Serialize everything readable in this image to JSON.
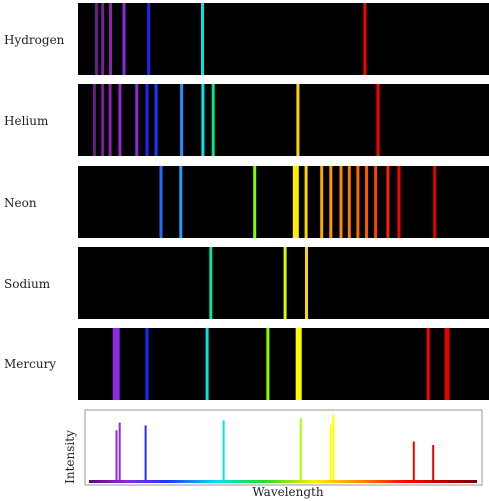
{
  "figure": {
    "panel_background": "#000000",
    "plot_background": "#ffffff",
    "plot_border": "#999999",
    "text_color": "#222222"
  },
  "chart_data": [
    {
      "type": "spectral-lines",
      "name": "hydrogen",
      "label": "Hydrogen",
      "lines": [
        {
          "pos": 0.045,
          "color": "#6a1b8a"
        },
        {
          "pos": 0.06,
          "color": "#7a1f9a"
        },
        {
          "pos": 0.079,
          "color": "#8a22b4"
        },
        {
          "pos": 0.112,
          "color": "#8a2be2"
        },
        {
          "pos": 0.172,
          "color": "#2222ff"
        },
        {
          "pos": 0.303,
          "color": "#00e5e5"
        },
        {
          "pos": 0.698,
          "color": "#ff0000"
        }
      ]
    },
    {
      "type": "spectral-lines",
      "name": "helium",
      "label": "Helium",
      "lines": [
        {
          "pos": 0.04,
          "color": "#6a1b8a"
        },
        {
          "pos": 0.06,
          "color": "#7a1f9a"
        },
        {
          "pos": 0.078,
          "color": "#8a22b4"
        },
        {
          "pos": 0.102,
          "color": "#9a28d0"
        },
        {
          "pos": 0.143,
          "color": "#8a2be2"
        },
        {
          "pos": 0.168,
          "color": "#2222ff"
        },
        {
          "pos": 0.19,
          "color": "#1a3cff"
        },
        {
          "pos": 0.252,
          "color": "#1e90ff"
        },
        {
          "pos": 0.304,
          "color": "#00e5e5"
        },
        {
          "pos": 0.329,
          "color": "#00e58a"
        },
        {
          "pos": 0.535,
          "color": "#ffd700"
        },
        {
          "pos": 0.73,
          "color": "#ff0000"
        }
      ]
    },
    {
      "type": "spectral-lines",
      "name": "neon",
      "label": "Neon",
      "lines": [
        {
          "pos": 0.202,
          "color": "#1e6cff"
        },
        {
          "pos": 0.25,
          "color": "#1ea0ff"
        },
        {
          "pos": 0.43,
          "color": "#7fff00"
        },
        {
          "pos": 0.53,
          "color": "#ffee00",
          "width": 6
        },
        {
          "pos": 0.555,
          "color": "#ffd700"
        },
        {
          "pos": 0.593,
          "color": "#ffa500"
        },
        {
          "pos": 0.615,
          "color": "#ff9800"
        },
        {
          "pos": 0.64,
          "color": "#ff8c00"
        },
        {
          "pos": 0.66,
          "color": "#ff7a00"
        },
        {
          "pos": 0.681,
          "color": "#ff6a00"
        },
        {
          "pos": 0.702,
          "color": "#ff5500"
        },
        {
          "pos": 0.724,
          "color": "#ff4000"
        },
        {
          "pos": 0.754,
          "color": "#ff2000"
        },
        {
          "pos": 0.781,
          "color": "#ff0000"
        },
        {
          "pos": 0.868,
          "color": "#e00000"
        }
      ]
    },
    {
      "type": "spectral-lines",
      "name": "sodium",
      "label": "Sodium",
      "lines": [
        {
          "pos": 0.323,
          "color": "#00e5a0"
        },
        {
          "pos": 0.504,
          "color": "#d4ff00"
        },
        {
          "pos": 0.556,
          "color": "#ffd700"
        }
      ]
    },
    {
      "type": "spectral-lines",
      "name": "mercury",
      "label": "Mercury",
      "lines": [
        {
          "pos": 0.093,
          "color": "#8a2be2",
          "width": 7
        },
        {
          "pos": 0.168,
          "color": "#2222ff"
        },
        {
          "pos": 0.314,
          "color": "#00e5e5"
        },
        {
          "pos": 0.462,
          "color": "#7fff00"
        },
        {
          "pos": 0.537,
          "color": "#ffff00",
          "width": 6
        },
        {
          "pos": 0.852,
          "color": "#ff0000"
        },
        {
          "pos": 0.898,
          "color": "#e00000",
          "width": 5
        }
      ]
    },
    {
      "type": "line",
      "name": "intensity-spectrum",
      "xlabel": "Wavelength",
      "ylabel": "Intensity",
      "xlim": [
        0,
        1
      ],
      "ylim": [
        0,
        1
      ],
      "peaks": [
        {
          "x": 0.071,
          "y": 0.71,
          "color": "#8a2be2"
        },
        {
          "x": 0.079,
          "y": 0.82,
          "color": "#8a2be2"
        },
        {
          "x": 0.146,
          "y": 0.78,
          "color": "#2a2aff"
        },
        {
          "x": 0.347,
          "y": 0.85,
          "color": "#00e5e5"
        },
        {
          "x": 0.546,
          "y": 0.88,
          "color": "#a8ff00"
        },
        {
          "x": 0.623,
          "y": 0.79,
          "color": "#ffff00"
        },
        {
          "x": 0.63,
          "y": 0.93,
          "color": "#ffff00"
        },
        {
          "x": 0.837,
          "y": 0.55,
          "color": "#ff0000"
        },
        {
          "x": 0.887,
          "y": 0.5,
          "color": "#e00000"
        }
      ]
    }
  ]
}
